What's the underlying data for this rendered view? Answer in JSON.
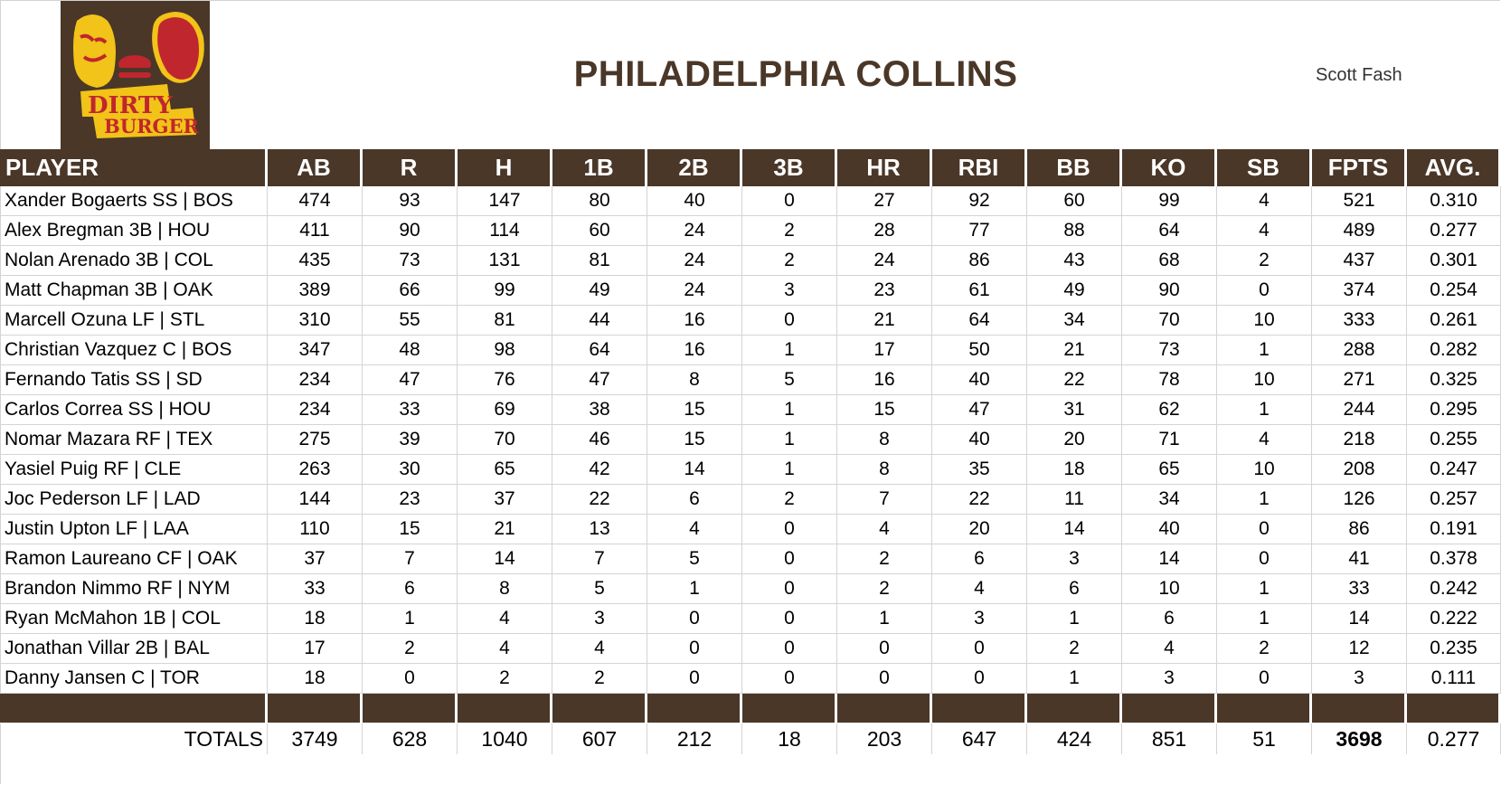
{
  "header": {
    "logo_text_line1": "DIRTY",
    "logo_text_line2": "BURGER",
    "team_name": "PHILADELPHIA COLLINS",
    "owner": "Scott Fash"
  },
  "colors": {
    "brand_brown": "#4a3728",
    "logo_yellow": "#f2c318",
    "logo_red": "#c0262d"
  },
  "table": {
    "columns": [
      "PLAYER",
      "AB",
      "R",
      "H",
      "1B",
      "2B",
      "3B",
      "HR",
      "RBI",
      "BB",
      "KO",
      "SB",
      "FPTS",
      "AVG."
    ],
    "rows": [
      [
        "Xander Bogaerts SS | BOS",
        "474",
        "93",
        "147",
        "80",
        "40",
        "0",
        "27",
        "92",
        "60",
        "99",
        "4",
        "521",
        "0.310"
      ],
      [
        "Alex Bregman 3B | HOU",
        "411",
        "90",
        "114",
        "60",
        "24",
        "2",
        "28",
        "77",
        "88",
        "64",
        "4",
        "489",
        "0.277"
      ],
      [
        "Nolan Arenado 3B | COL",
        "435",
        "73",
        "131",
        "81",
        "24",
        "2",
        "24",
        "86",
        "43",
        "68",
        "2",
        "437",
        "0.301"
      ],
      [
        "Matt Chapman 3B | OAK",
        "389",
        "66",
        "99",
        "49",
        "24",
        "3",
        "23",
        "61",
        "49",
        "90",
        "0",
        "374",
        "0.254"
      ],
      [
        "Marcell Ozuna LF | STL",
        "310",
        "55",
        "81",
        "44",
        "16",
        "0",
        "21",
        "64",
        "34",
        "70",
        "10",
        "333",
        "0.261"
      ],
      [
        "Christian Vazquez C | BOS",
        "347",
        "48",
        "98",
        "64",
        "16",
        "1",
        "17",
        "50",
        "21",
        "73",
        "1",
        "288",
        "0.282"
      ],
      [
        "Fernando Tatis SS | SD",
        "234",
        "47",
        "76",
        "47",
        "8",
        "5",
        "16",
        "40",
        "22",
        "78",
        "10",
        "271",
        "0.325"
      ],
      [
        "Carlos Correa SS | HOU",
        "234",
        "33",
        "69",
        "38",
        "15",
        "1",
        "15",
        "47",
        "31",
        "62",
        "1",
        "244",
        "0.295"
      ],
      [
        "Nomar Mazara RF | TEX",
        "275",
        "39",
        "70",
        "46",
        "15",
        "1",
        "8",
        "40",
        "20",
        "71",
        "4",
        "218",
        "0.255"
      ],
      [
        "Yasiel Puig RF | CLE",
        "263",
        "30",
        "65",
        "42",
        "14",
        "1",
        "8",
        "35",
        "18",
        "65",
        "10",
        "208",
        "0.247"
      ],
      [
        "Joc Pederson LF | LAD",
        "144",
        "23",
        "37",
        "22",
        "6",
        "2",
        "7",
        "22",
        "11",
        "34",
        "1",
        "126",
        "0.257"
      ],
      [
        "Justin Upton LF | LAA",
        "110",
        "15",
        "21",
        "13",
        "4",
        "0",
        "4",
        "20",
        "14",
        "40",
        "0",
        "86",
        "0.191"
      ],
      [
        "Ramon Laureano CF | OAK",
        "37",
        "7",
        "14",
        "7",
        "5",
        "0",
        "2",
        "6",
        "3",
        "14",
        "0",
        "41",
        "0.378"
      ],
      [
        "Brandon Nimmo RF | NYM",
        "33",
        "6",
        "8",
        "5",
        "1",
        "0",
        "2",
        "4",
        "6",
        "10",
        "1",
        "33",
        "0.242"
      ],
      [
        "Ryan McMahon 1B | COL",
        "18",
        "1",
        "4",
        "3",
        "0",
        "0",
        "1",
        "3",
        "1",
        "6",
        "1",
        "14",
        "0.222"
      ],
      [
        "Jonathan Villar 2B | BAL",
        "17",
        "2",
        "4",
        "4",
        "0",
        "0",
        "0",
        "0",
        "2",
        "4",
        "2",
        "12",
        "0.235"
      ],
      [
        "Danny Jansen C | TOR",
        "18",
        "0",
        "2",
        "2",
        "0",
        "0",
        "0",
        "0",
        "1",
        "3",
        "0",
        "3",
        "0.111"
      ]
    ],
    "totals": [
      "TOTALS",
      "3749",
      "628",
      "1040",
      "607",
      "212",
      "18",
      "203",
      "647",
      "424",
      "851",
      "51",
      "3698",
      "0.277"
    ]
  }
}
